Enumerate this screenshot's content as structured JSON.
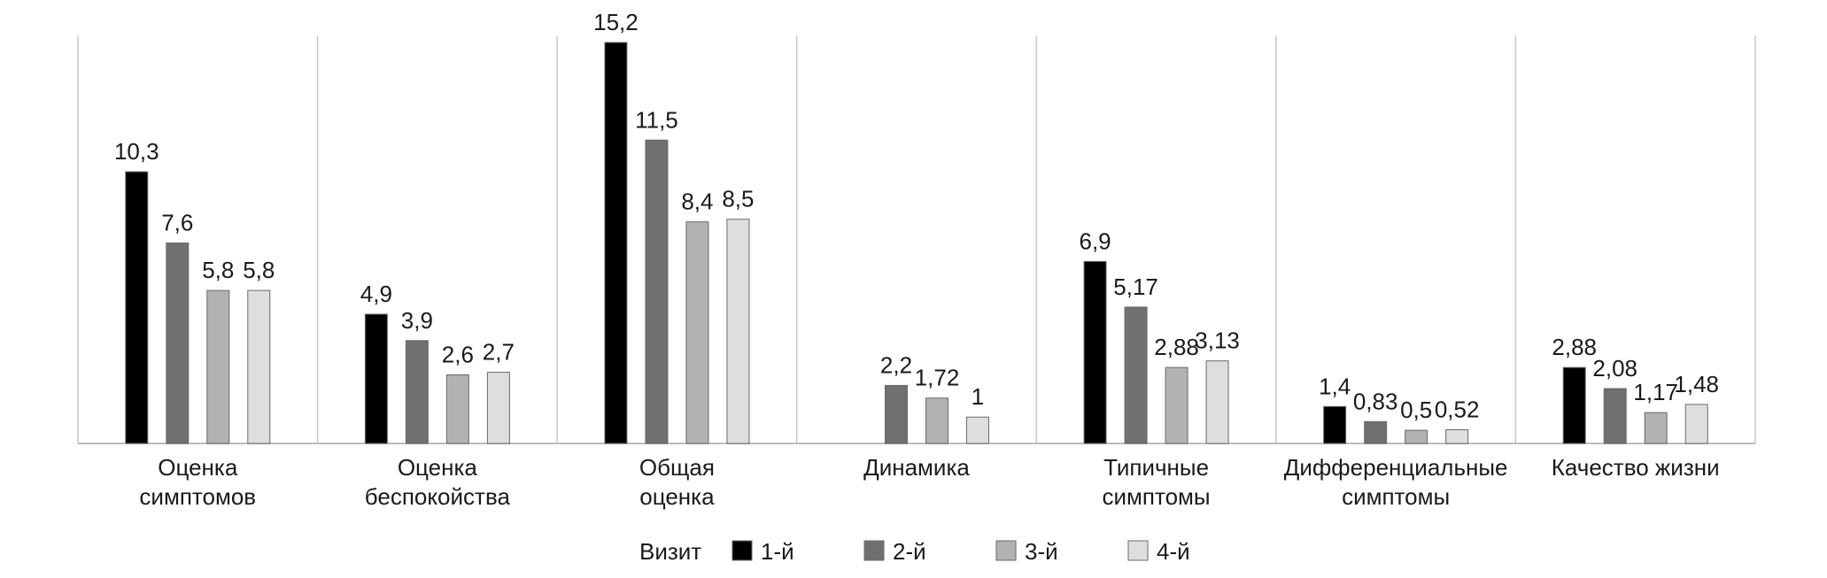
{
  "chart_data": {
    "type": "bar",
    "categories": [
      [
        "Оценка",
        "симптомов"
      ],
      [
        "Оценка",
        "беспокойства"
      ],
      [
        "Общая",
        "оценка"
      ],
      [
        "Динамика"
      ],
      [
        "Типичные",
        "симптомы"
      ],
      [
        "Дифференциальные",
        "симптомы"
      ],
      [
        "Качество жизни"
      ]
    ],
    "series": [
      {
        "name": "1-й",
        "color": "#000000",
        "values": [
          10.3,
          4.9,
          15.2,
          null,
          6.9,
          1.4,
          2.88
        ],
        "labels": [
          "10,3",
          "4,9",
          "15,2",
          "",
          "6,9",
          "1,4",
          "2,88"
        ]
      },
      {
        "name": "2-й",
        "color": "#707070",
        "values": [
          7.6,
          3.9,
          11.5,
          2.2,
          5.17,
          0.83,
          2.08
        ],
        "labels": [
          "7,6",
          "3,9",
          "11,5",
          "2,2",
          "5,17",
          "0,83",
          "2,08"
        ]
      },
      {
        "name": "3-й",
        "color": "#b2b2b2",
        "values": [
          5.8,
          2.6,
          8.4,
          1.72,
          2.88,
          0.5,
          1.17
        ],
        "labels": [
          "5,8",
          "2,6",
          "8,4",
          "1,72",
          "2,88",
          "0,5",
          "1,17"
        ]
      },
      {
        "name": "4-й",
        "color": "#dedede",
        "values": [
          5.8,
          2.7,
          8.5,
          1,
          3.13,
          0.52,
          1.48
        ],
        "labels": [
          "5,8",
          "2,7",
          "8,5",
          "1",
          "3,13",
          "0,52",
          "1,48"
        ]
      }
    ],
    "ylim": [
      0,
      16
    ],
    "grid": "vertical category separators",
    "legend": {
      "title": "Визит",
      "position": "bottom"
    }
  }
}
